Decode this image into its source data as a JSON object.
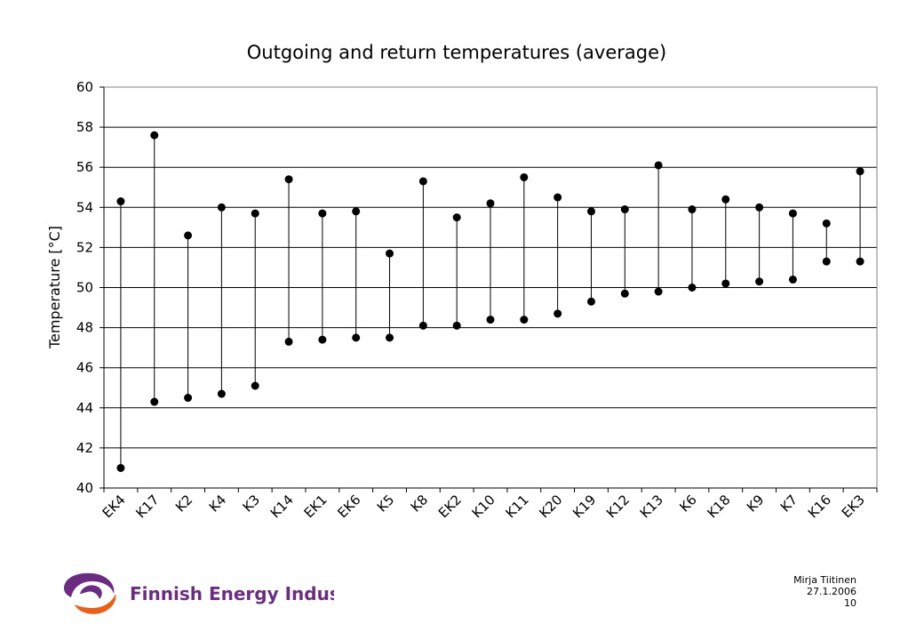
{
  "chart_data": {
    "type": "range",
    "title": "Outgoing and return temperatures (average)",
    "xlabel": "",
    "ylabel": "Temperature [°C]",
    "ylim": [
      40,
      60
    ],
    "yticks": [
      "40",
      "42",
      "44",
      "46",
      "48",
      "50",
      "52",
      "54",
      "56",
      "58",
      "60"
    ],
    "grid": true,
    "categories": [
      "EK4",
      "K17",
      "K2",
      "K4",
      "K3",
      "K14",
      "EK1",
      "EK6",
      "K5",
      "K8",
      "EK2",
      "K10",
      "K11",
      "K20",
      "K19",
      "K12",
      "K13",
      "K6",
      "K18",
      "K9",
      "K7",
      "K16",
      "EK3"
    ],
    "series": [
      {
        "values": [
          54.3,
          57.6,
          52.6,
          54.0,
          53.7,
          55.4,
          53.7,
          53.8,
          51.7,
          55.3,
          53.5,
          54.2,
          55.5,
          54.5,
          53.8,
          53.9,
          56.1,
          53.9,
          54.4,
          54.0,
          53.7,
          53.2,
          55.8
        ]
      },
      {
        "values": [
          41.0,
          44.3,
          44.5,
          44.7,
          45.1,
          47.3,
          47.4,
          47.5,
          47.5,
          48.1,
          48.1,
          48.4,
          48.4,
          48.7,
          49.3,
          49.7,
          49.8,
          50.0,
          50.2,
          50.3,
          50.4,
          51.3,
          51.3
        ]
      }
    ],
    "colors": {
      "marker": "#000000",
      "grid": "#000000",
      "plot_border": "#808080"
    }
  },
  "logo": {
    "text": "Finnish Energy Industries",
    "colors": {
      "purple": "#6b2d82",
      "orange": "#e8611a"
    }
  },
  "footer": {
    "author": "Mirja Tiitinen",
    "date": "27.1.2006",
    "page": "10"
  }
}
